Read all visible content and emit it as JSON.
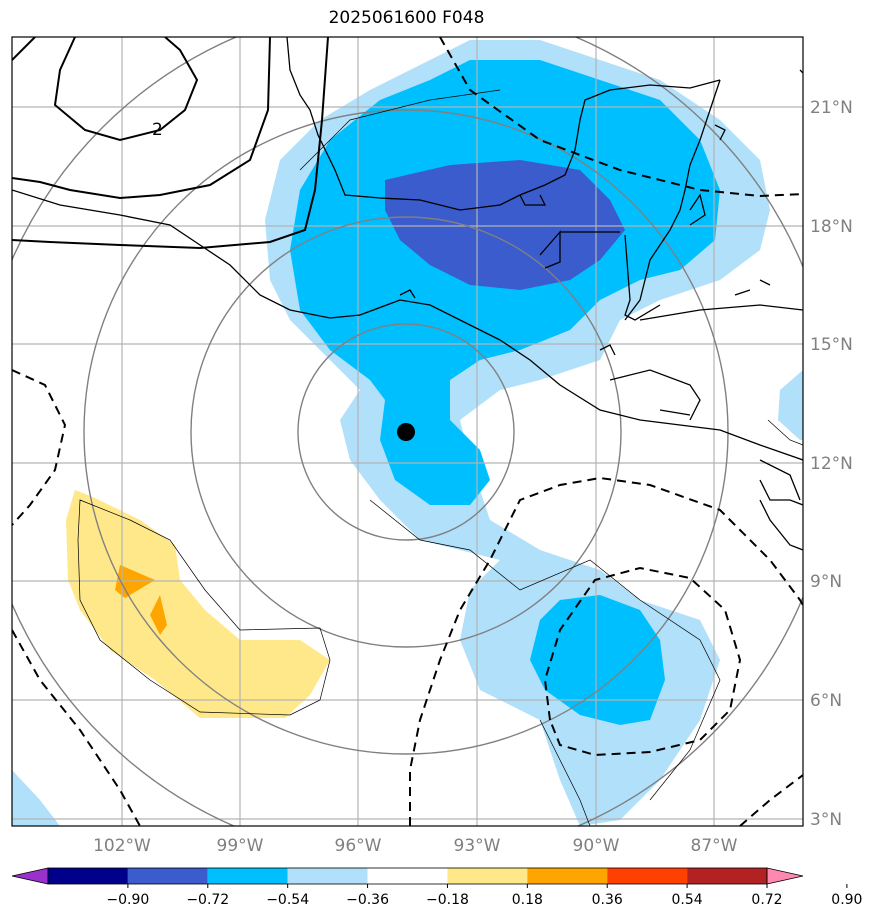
{
  "title": "2025061600 F048",
  "map": {
    "lat_labels": [
      "21°N",
      "18°N",
      "15°N",
      "12°N",
      "9°N",
      "6°N",
      "3°N"
    ],
    "lon_labels": [
      "102°W",
      "99°W",
      "96°W",
      "93°W",
      "90°W",
      "87°W"
    ],
    "contour_label": "2",
    "storm_center": {
      "lat": 12.8,
      "lon": 94.8
    }
  },
  "colorbar": {
    "ticks": [
      "−0.90",
      "−0.72",
      "−0.54",
      "−0.36",
      "−0.18",
      "0.18",
      "0.36",
      "0.54",
      "0.72",
      "0.90"
    ],
    "colors": [
      "#9932cc",
      "#00008b",
      "#3a5ccc",
      "#00bfff",
      "#b0e0fa",
      "#ffffff",
      "#ffe88a",
      "#ffa500",
      "#ff4000",
      "#b22222",
      "#ff88b0"
    ]
  }
}
